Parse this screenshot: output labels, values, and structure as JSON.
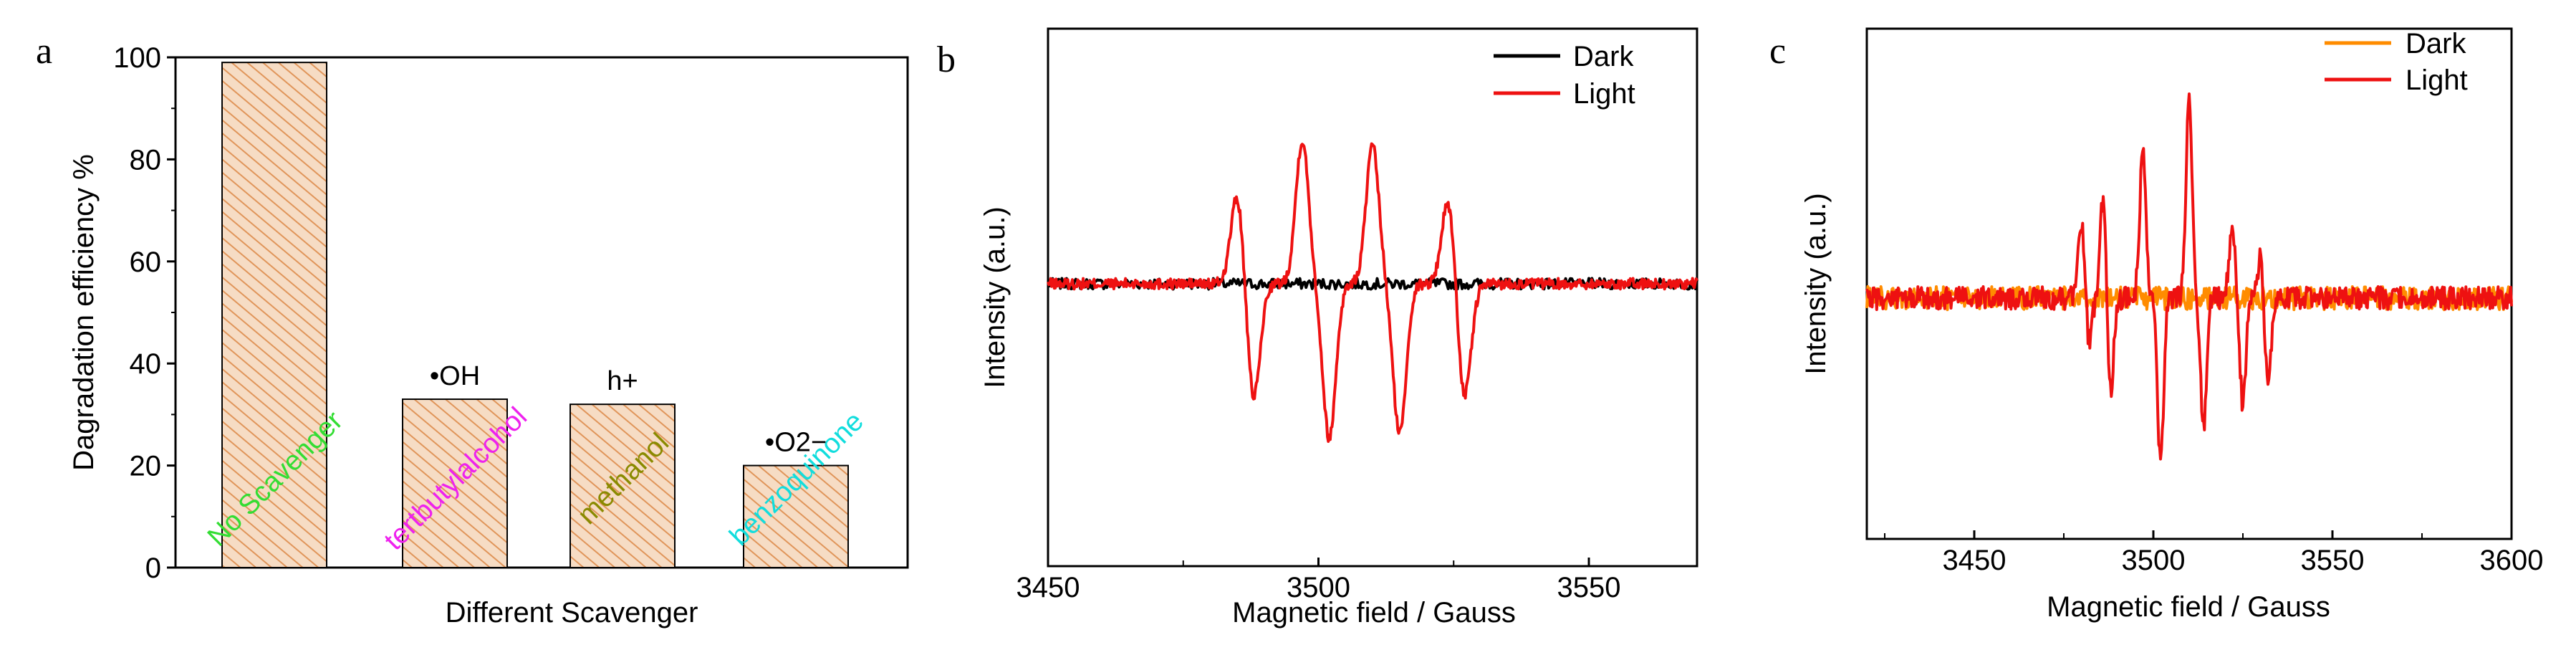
{
  "colors": {
    "bar_fill": "#f6dcc4",
    "bar_hatch": "#e0955a",
    "label_no_scavenger": "#33dd33",
    "label_tba": "#ee22ee",
    "label_methanol": "#8a8a00",
    "label_bq": "#11dddd",
    "dark_b": "#000000",
    "light": "#ee1111",
    "dark_c": "#ff8c00"
  },
  "chart_data": [
    {
      "panel": "a",
      "type": "bar",
      "xlabel": "Different Scavenger",
      "ylabel": "Dagradation efficiency %",
      "ylim": [
        0,
        100
      ],
      "yticks": [
        "0",
        "20",
        "40",
        "60",
        "80",
        "100"
      ],
      "categories": [
        "No Scavenger",
        "tertbutylalcohol",
        "methanol",
        "benzoquinone"
      ],
      "values": [
        99,
        33,
        32,
        20
      ],
      "species_labels": [
        "",
        "•OH",
        "h+",
        "•O2−"
      ]
    },
    {
      "panel": "b",
      "type": "line",
      "xlabel": "Magnetic field / Gauss",
      "ylabel": "Intensity (a.u.)",
      "xlim": [
        3450,
        3570
      ],
      "xticks": [
        "3450",
        "3500",
        "3550"
      ],
      "legend": [
        "Dark",
        "Light"
      ],
      "legend_position": "top-right",
      "peaks_light": [
        [
          3485,
          0.58
        ],
        [
          3488,
          -0.75
        ],
        [
          3497,
          0.93
        ],
        [
          3502,
          -1.0
        ],
        [
          3510,
          0.89
        ],
        [
          3515,
          -0.97
        ],
        [
          3524,
          0.55
        ],
        [
          3527,
          -0.74
        ]
      ]
    },
    {
      "panel": "c",
      "type": "line",
      "xlabel": "Magnetic field / Gauss",
      "ylabel": "Intensity (a.u.)",
      "xlim": [
        3420,
        3600
      ],
      "xticks": [
        "3450",
        "3500",
        "3550",
        "3600"
      ],
      "legend": [
        "Dark",
        "Light"
      ],
      "legend_position": "top-right",
      "peaks_light": [
        [
          3480,
          0.48
        ],
        [
          3482,
          -0.28
        ],
        [
          3486,
          0.61
        ],
        [
          3488,
          -0.58
        ],
        [
          3497,
          0.88
        ],
        [
          3502,
          -1.0
        ],
        [
          3510,
          1.2
        ],
        [
          3514,
          -0.78
        ],
        [
          3522,
          0.41
        ],
        [
          3525,
          -0.64
        ],
        [
          3530,
          0.27
        ],
        [
          3532,
          -0.57
        ]
      ]
    }
  ]
}
